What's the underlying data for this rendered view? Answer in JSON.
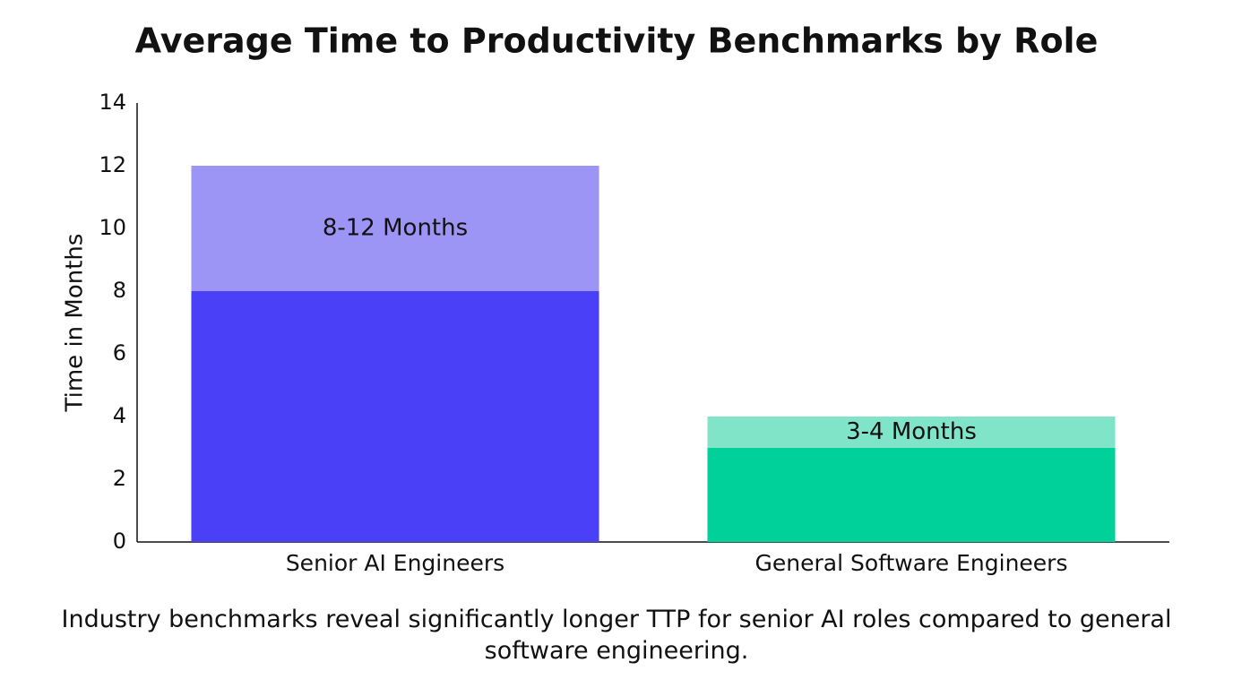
{
  "chart_data": {
    "type": "stacked-bar",
    "title": "Average Time to Productivity Benchmarks by Role",
    "y_label": "Time in Months",
    "categories": [
      "Senior AI Engineers",
      "General Software Engineers"
    ],
    "series": [
      {
        "colors": [
          "#4a40f7",
          "#00d09a"
        ],
        "values": [
          8,
          3
        ]
      },
      {
        "colors": [
          "#9d95f5",
          "#80e4c8"
        ],
        "values": [
          4,
          1
        ]
      }
    ],
    "annotations": [
      "8-12 Months",
      "3-4 Months"
    ],
    "ylim": [
      0,
      14
    ],
    "yticks": [
      0,
      2,
      4,
      6,
      8,
      10,
      12,
      14
    ],
    "grid": false,
    "caption": "Industry benchmarks reveal significantly longer TTP for senior AI roles compared to general software engineering."
  }
}
